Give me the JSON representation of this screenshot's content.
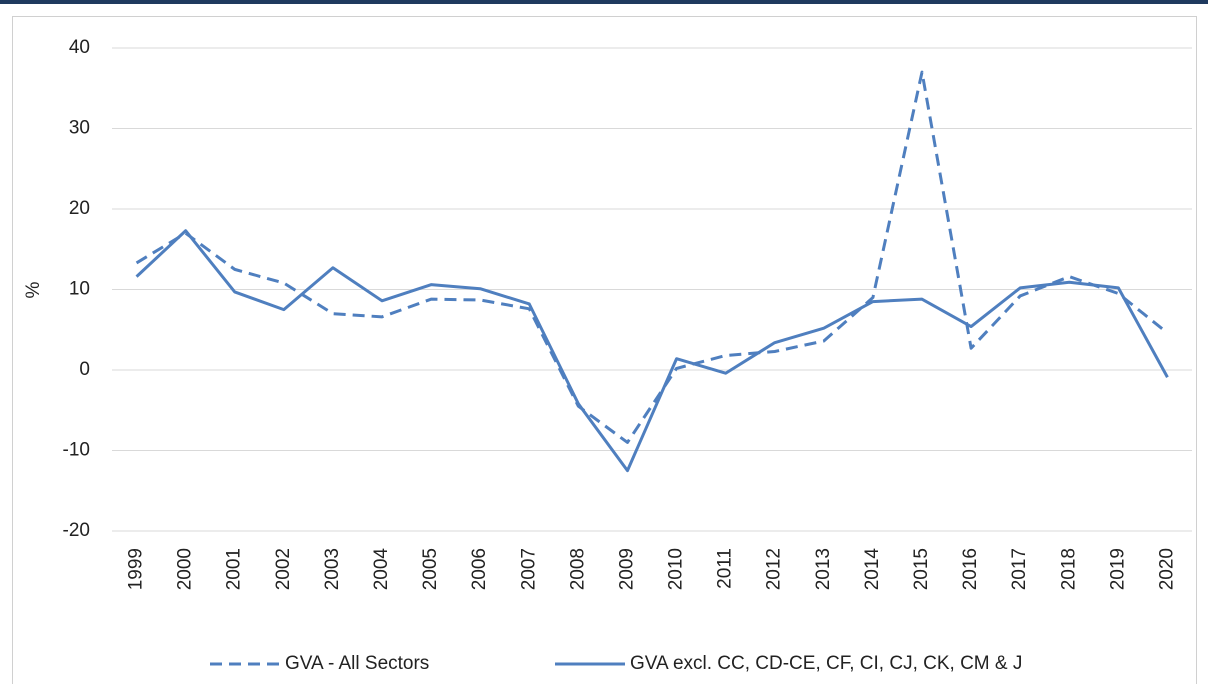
{
  "chart_data": {
    "type": "line",
    "y_label": "%",
    "categories": [
      "1999",
      "2000",
      "2001",
      "2002",
      "2003",
      "2004",
      "2005",
      "2006",
      "2007",
      "2008",
      "2009",
      "2010",
      "2011",
      "2012",
      "2013",
      "2014",
      "2015",
      "2016",
      "2017",
      "2018",
      "2019",
      "2020"
    ],
    "series": [
      {
        "name": "GVA - All Sectors",
        "color": "#4f7fbf",
        "dash": true,
        "values": [
          13.3,
          17,
          12.5,
          10.8,
          7,
          6.6,
          8.8,
          8.7,
          7.6,
          -4.5,
          -9,
          0.2,
          1.8,
          2.3,
          3.6,
          9,
          37,
          2.7,
          9.2,
          11.6,
          9.5,
          4.6
        ]
      },
      {
        "name": "GVA excl. CC, CD-CE, CF, CI, CJ, CK, CM & J",
        "color": "#4f7fbf",
        "dash": false,
        "values": [
          11.6,
          17.3,
          9.7,
          7.5,
          12.7,
          8.6,
          10.6,
          10.1,
          8.2,
          -4.2,
          -12.5,
          1.4,
          -0.4,
          3.4,
          5.2,
          8.5,
          8.8,
          5.4,
          10.2,
          10.9,
          10.2,
          -0.9
        ]
      }
    ],
    "ylim": [
      -20,
      40
    ],
    "yticks": [
      -20,
      -10,
      0,
      10,
      20,
      30,
      40
    ],
    "grid": true,
    "legend": "bottom"
  }
}
